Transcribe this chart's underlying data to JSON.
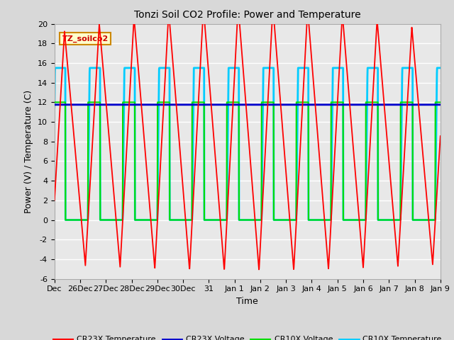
{
  "title": "Tonzi Soil CO2 Profile: Power and Temperature",
  "xlabel": "Time",
  "ylabel": "Power (V) / Temperature (C)",
  "ylim": [
    -6,
    20
  ],
  "yticks": [
    -6,
    -4,
    -2,
    0,
    2,
    4,
    6,
    8,
    10,
    12,
    14,
    16,
    18,
    20
  ],
  "xlabels": [
    "Dec",
    "26Dec",
    "27Dec",
    "28Dec",
    "29Dec",
    "30Dec",
    "31",
    "Jan 1",
    "Jan 2",
    "Jan 3",
    "Jan 4",
    "Jan 5",
    "Jan 6",
    "Jan 7",
    "Jan 8",
    "Jan 9"
  ],
  "annotation_text": "TZ_soilco2",
  "annotation_color": "#cc0000",
  "annotation_bg": "#ffffcc",
  "annotation_border": "#cc8800",
  "bg_color": "#e8e8e8",
  "grid_color": "#ffffff",
  "cr23x_volt_level": 11.75,
  "period": 1.4,
  "total_days": 15.0,
  "n_points": 2000
}
